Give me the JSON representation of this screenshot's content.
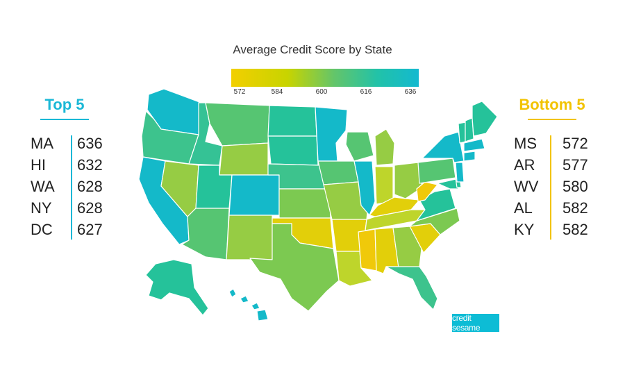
{
  "title": "Average Credit Score by State",
  "legend": {
    "ticks": [
      "572",
      "584",
      "600",
      "616",
      "636"
    ],
    "colors": [
      "#f2cf00",
      "#c8d400",
      "#63c56a",
      "#22c2a8",
      "#13b9d0"
    ]
  },
  "top5": {
    "heading": "Top 5",
    "color": "#1bb8d6",
    "rows": [
      {
        "state": "MA",
        "score": "636"
      },
      {
        "state": "HI",
        "score": "632"
      },
      {
        "state": "WA",
        "score": "628"
      },
      {
        "state": "NY",
        "score": "628"
      },
      {
        "state": "DC",
        "score": "627"
      }
    ]
  },
  "bottom5": {
    "heading": "Bottom 5",
    "color": "#f2c300",
    "rows": [
      {
        "state": "MS",
        "score": "572"
      },
      {
        "state": "AR",
        "score": "577"
      },
      {
        "state": "WV",
        "score": "580"
      },
      {
        "state": "AL",
        "score": "582"
      },
      {
        "state": "KY",
        "score": "582"
      }
    ]
  },
  "brand": {
    "text": "credit sesame"
  },
  "map": {
    "palette": {
      "teal": "#14b9c9",
      "teal_green": "#25c29a",
      "green": "#56c572",
      "yellow_green": "#96cc44",
      "lime": "#bed52b",
      "yellow": "#e2cf0a",
      "gold": "#f0c90a"
    }
  }
}
